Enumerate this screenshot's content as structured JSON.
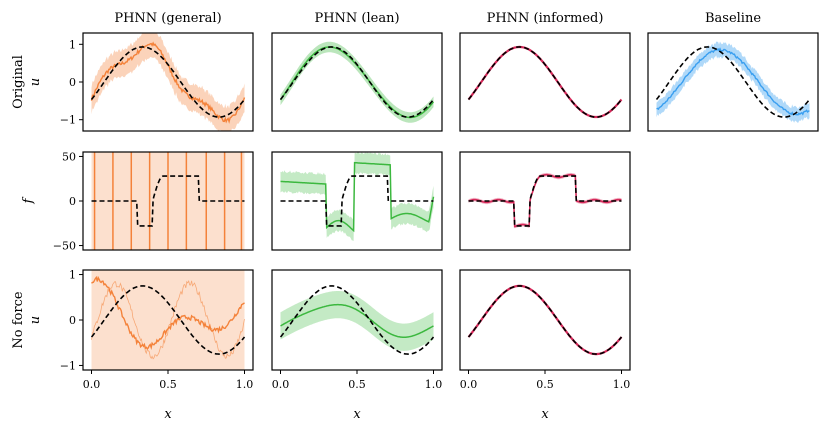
{
  "figure": {
    "columns": [
      "PHNN (general)",
      "PHNN (lean)",
      "PHNN (informed)",
      "Baseline"
    ],
    "row_labels": [
      {
        "name": "Original",
        "var": "u"
      },
      {
        "name": "",
        "var": "f"
      },
      {
        "name": "No force",
        "var": "u"
      }
    ],
    "xlabel": "x"
  },
  "colors": {
    "general": "#f4823a",
    "lean": "#3cb83f",
    "informed": "#d6295a",
    "baseline": "#3a9ff0",
    "target": "#000000"
  },
  "chart_data": [
    {
      "type": "line",
      "panel": "original-general",
      "title": "PHNN (general)",
      "ylabel": "u",
      "xlim": [
        0,
        1
      ],
      "ylim": [
        -1.3,
        1.3
      ],
      "yticks": [
        -1,
        0,
        1
      ],
      "xticks": [
        0.0,
        0.5,
        1.0
      ],
      "series": [
        {
          "name": "target",
          "style": "dashed",
          "fn": "sin"
        },
        {
          "name": "prediction",
          "color": "general",
          "band": "wide",
          "fn": "noisy-sin"
        }
      ]
    },
    {
      "type": "line",
      "panel": "original-lean",
      "title": "PHNN (lean)",
      "xlim": [
        0,
        1
      ],
      "ylim": [
        -1.3,
        1.3
      ],
      "xticks": [
        0.0,
        0.5,
        1.0
      ],
      "series": [
        {
          "name": "target",
          "style": "dashed"
        },
        {
          "name": "prediction",
          "color": "lean",
          "band": "medium"
        }
      ]
    },
    {
      "type": "line",
      "panel": "original-informed",
      "title": "PHNN (informed)",
      "xlim": [
        0,
        1
      ],
      "ylim": [
        -1.3,
        1.3
      ],
      "xticks": [
        0.0,
        0.5,
        1.0
      ],
      "series": [
        {
          "name": "target",
          "style": "dashed"
        },
        {
          "name": "prediction",
          "color": "informed",
          "band": "none"
        }
      ]
    },
    {
      "type": "line",
      "panel": "original-baseline",
      "title": "Baseline",
      "xlim": [
        0,
        1
      ],
      "ylim": [
        -1.3,
        1.3
      ],
      "series": [
        {
          "name": "target",
          "style": "dashed"
        },
        {
          "name": "prediction",
          "color": "baseline",
          "band": "noisy"
        }
      ]
    },
    {
      "type": "line",
      "panel": "force-general",
      "ylabel": "f",
      "xlim": [
        0,
        1
      ],
      "ylim": [
        -55,
        55
      ],
      "yticks": [
        -50,
        0,
        50
      ],
      "series": [
        {
          "name": "target",
          "style": "dashed",
          "steps": [
            [
              0,
              0
            ],
            [
              0.3,
              -28
            ],
            [
              0.4,
              28
            ],
            [
              0.7,
              0
            ]
          ]
        },
        {
          "name": "prediction",
          "color": "general",
          "spikes_at": [
            0.02,
            0.14,
            0.26,
            0.38,
            0.5,
            0.62,
            0.75,
            0.87,
            0.98
          ]
        }
      ]
    },
    {
      "type": "line",
      "panel": "force-lean",
      "xlim": [
        0,
        1
      ],
      "ylim": [
        -55,
        55
      ],
      "series": [
        {
          "name": "target",
          "style": "dashed"
        },
        {
          "name": "prediction",
          "color": "lean",
          "levels": [
            22,
            -30,
            43,
            -20
          ]
        }
      ]
    },
    {
      "type": "line",
      "panel": "force-informed",
      "xlim": [
        0,
        1
      ],
      "ylim": [
        -55,
        55
      ],
      "series": [
        {
          "name": "target",
          "style": "dashed"
        },
        {
          "name": "prediction",
          "color": "informed"
        }
      ]
    },
    {
      "type": "line",
      "panel": "noforce-general",
      "ylabel": "u",
      "xlim": [
        0,
        1
      ],
      "ylim": [
        -1.1,
        1.1
      ],
      "yticks": [
        -1,
        0,
        1
      ],
      "series": [
        {
          "name": "target",
          "style": "dashed",
          "amplitude": 0.75
        },
        {
          "name": "prediction",
          "color": "general",
          "band": "full"
        }
      ]
    },
    {
      "type": "line",
      "panel": "noforce-lean",
      "xlim": [
        0,
        1
      ],
      "ylim": [
        -1.1,
        1.1
      ],
      "series": [
        {
          "name": "target",
          "style": "dashed",
          "amplitude": 0.75
        },
        {
          "name": "prediction",
          "color": "lean",
          "amplitude": 0.35
        }
      ]
    },
    {
      "type": "line",
      "panel": "noforce-informed",
      "xlim": [
        0,
        1
      ],
      "ylim": [
        -1.1,
        1.1
      ],
      "series": [
        {
          "name": "target",
          "style": "dashed",
          "amplitude": 0.75
        },
        {
          "name": "prediction",
          "color": "informed",
          "amplitude": 0.75
        }
      ]
    }
  ]
}
